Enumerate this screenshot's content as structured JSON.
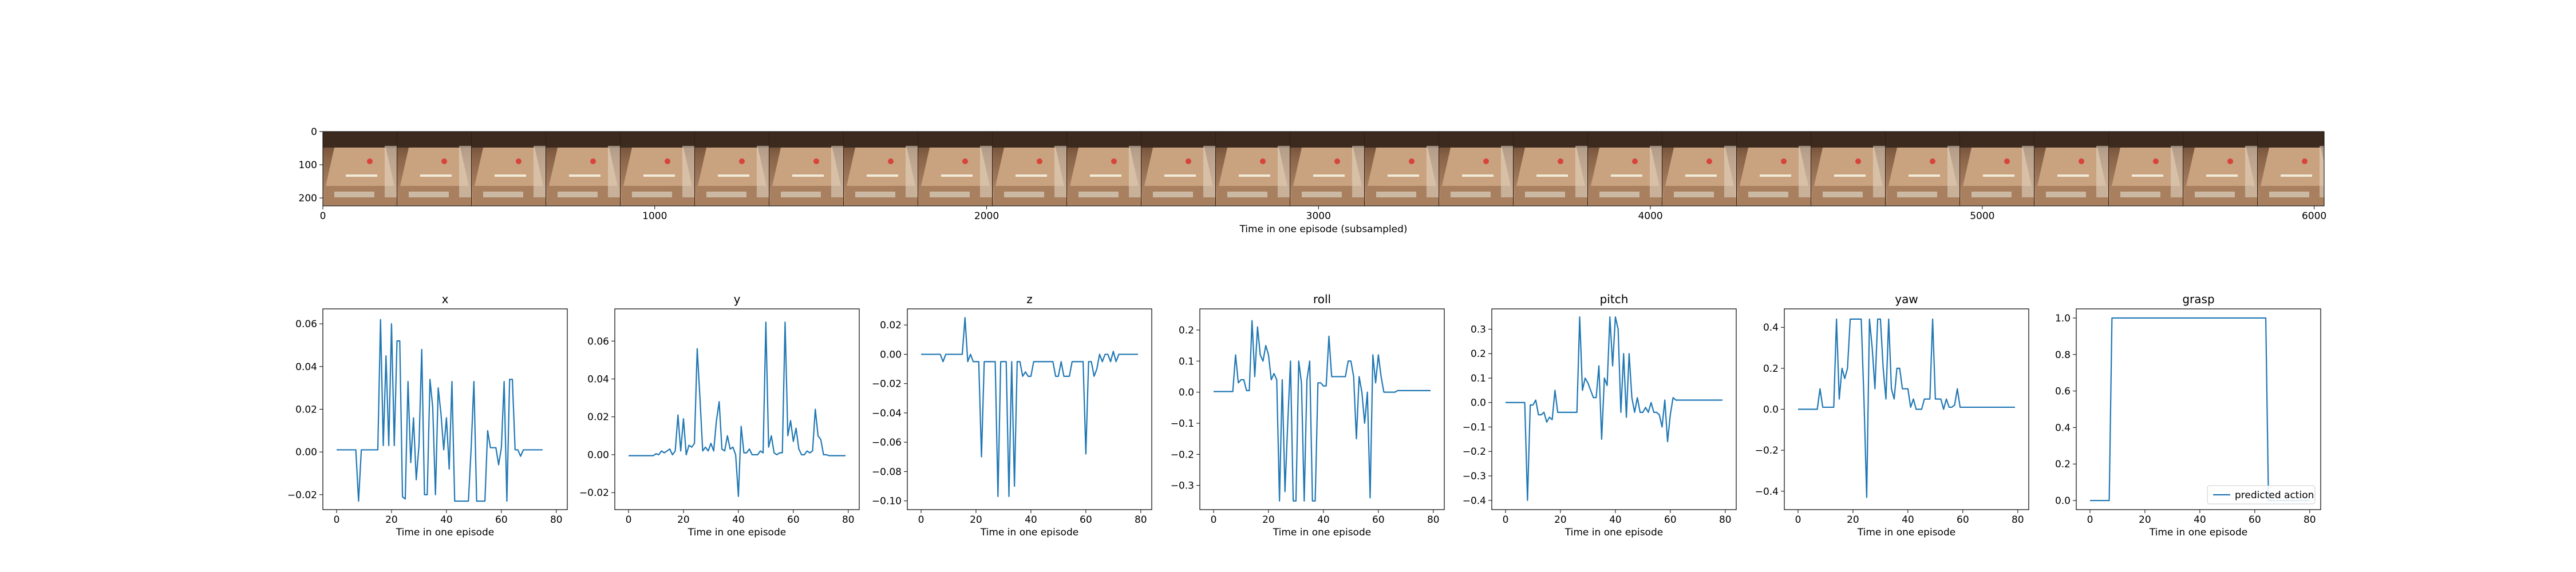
{
  "colors": {
    "line": "#1f77b4",
    "axis": "#000000",
    "background": "#ffffff"
  },
  "filmstrip": {
    "frame_count": 27,
    "x_label": "Time in one episode (subsampled)",
    "x_ticks": [
      "0",
      "1000",
      "2000",
      "3000",
      "4000",
      "5000",
      "6000"
    ],
    "y_ticks": [
      "0",
      "100",
      "200"
    ]
  },
  "chart_data": [
    {
      "type": "line",
      "title": "x",
      "xlabel": "Time in one episode",
      "ylabel": "",
      "xlim": [
        -5,
        84
      ],
      "ylim": [
        -0.027,
        0.067
      ],
      "x_ticks": [
        0,
        20,
        40,
        60,
        80
      ],
      "y_ticks": [
        -0.02,
        0.0,
        0.02,
        0.04,
        0.06
      ],
      "y_tick_labels": [
        "−0.02",
        "0.00",
        "0.02",
        "0.04",
        "0.06"
      ],
      "values": [
        0.001,
        0.001,
        0.001,
        0.001,
        0.001,
        0.001,
        0.001,
        0.001,
        -0.023,
        0.001,
        0.001,
        0.001,
        0.001,
        0.001,
        0.001,
        0.001,
        0.062,
        0.003,
        0.045,
        0.003,
        0.06,
        0.003,
        0.052,
        0.052,
        -0.021,
        -0.022,
        0.033,
        -0.005,
        0.016,
        -0.013,
        0.003,
        0.048,
        -0.02,
        -0.02,
        0.034,
        0.021,
        -0.02,
        0.03,
        0.018,
        0.001,
        0.016,
        -0.008,
        0.033,
        -0.023,
        -0.023,
        -0.023,
        -0.023,
        -0.023,
        -0.023,
        0.002,
        0.033,
        -0.023,
        -0.023,
        -0.023,
        -0.023,
        0.01,
        0.002,
        0.002,
        0.002,
        -0.006,
        0.002,
        0.033,
        -0.023,
        0.034,
        0.034,
        0.001,
        0.001,
        -0.002,
        0.001,
        0.001,
        0.001,
        0.001,
        0.001,
        0.001,
        0.001,
        0.001
      ]
    },
    {
      "type": "line",
      "title": "y",
      "xlabel": "Time in one episode",
      "ylabel": "",
      "xlim": [
        -5,
        84
      ],
      "ylim": [
        -0.029,
        0.077
      ],
      "x_ticks": [
        0,
        20,
        40,
        60,
        80
      ],
      "y_ticks": [
        -0.02,
        0.0,
        0.02,
        0.04,
        0.06
      ],
      "y_tick_labels": [
        "−0.02",
        "0.00",
        "0.02",
        "0.04",
        "0.06"
      ],
      "values": [
        -0.0005,
        -0.0005,
        -0.0005,
        -0.0005,
        -0.0005,
        -0.0005,
        -0.0005,
        -0.0005,
        -0.0005,
        -0.0005,
        0.0005,
        0.0,
        0.002,
        0.001,
        0.002,
        0.003,
        0.0,
        0.002,
        0.021,
        0.002,
        0.019,
        0.0,
        0.005,
        0.004,
        0.006,
        0.056,
        0.03,
        0.002,
        0.004,
        0.002,
        0.006,
        0.002,
        0.018,
        0.028,
        0.003,
        0.002,
        0.01,
        0.003,
        0.004,
        0.0,
        -0.022,
        0.015,
        0.001,
        0.001,
        0.003,
        0.0,
        0.0,
        0.0,
        0.002,
        0.001,
        0.07,
        0.004,
        0.01,
        0.001,
        0.0,
        0.001,
        0.001,
        0.07,
        0.01,
        0.018,
        0.007,
        0.014,
        0.003,
        0.0,
        0.0,
        0.002,
        0.001,
        0.002,
        0.024,
        0.01,
        0.008,
        0.0,
        0.0,
        -0.0005,
        -0.0005,
        -0.0005,
        -0.0005,
        -0.0005,
        -0.0005,
        -0.0005
      ]
    },
    {
      "type": "line",
      "title": "z",
      "xlabel": "Time in one episode",
      "ylabel": "",
      "xlim": [
        -5,
        84
      ],
      "ylim": [
        -0.106,
        0.031
      ],
      "x_ticks": [
        0,
        20,
        40,
        60,
        80
      ],
      "y_ticks": [
        0.02,
        0.0,
        -0.02,
        -0.04,
        -0.06,
        -0.08,
        -0.1
      ],
      "y_tick_labels": [
        "0.02",
        "0.00",
        "−0.02",
        "−0.04",
        "−0.06",
        "−0.08",
        "−0.10"
      ],
      "values": [
        0.0,
        0.0,
        0.0,
        0.0,
        0.0,
        0.0,
        0.0,
        0.0,
        -0.005,
        0.0,
        0.0,
        0.0,
        0.0,
        0.0,
        0.0,
        0.0,
        0.025,
        -0.005,
        0.0,
        -0.005,
        -0.005,
        -0.005,
        -0.07,
        -0.005,
        -0.005,
        -0.005,
        -0.005,
        -0.005,
        -0.097,
        -0.005,
        -0.005,
        -0.005,
        -0.097,
        -0.005,
        -0.09,
        -0.005,
        -0.005,
        -0.015,
        -0.012,
        -0.015,
        -0.015,
        -0.005,
        -0.005,
        -0.005,
        -0.005,
        -0.005,
        -0.005,
        -0.005,
        -0.005,
        -0.015,
        -0.015,
        -0.005,
        -0.015,
        -0.015,
        -0.015,
        -0.005,
        -0.005,
        -0.005,
        -0.005,
        -0.005,
        -0.068,
        -0.005,
        -0.005,
        -0.015,
        -0.01,
        0.0,
        -0.005,
        0.0,
        0.0,
        -0.005,
        0.002,
        -0.005,
        0.0,
        0.0,
        0.0,
        0.0,
        0.0,
        0.0,
        0.0,
        0.0
      ]
    },
    {
      "type": "line",
      "title": "roll",
      "xlabel": "Time in one episode",
      "ylabel": "",
      "xlim": [
        -5,
        84
      ],
      "ylim": [
        -0.378,
        0.268
      ],
      "x_ticks": [
        0,
        20,
        40,
        60,
        80
      ],
      "y_ticks": [
        0.2,
        0.1,
        0.0,
        -0.1,
        -0.2,
        -0.3
      ],
      "y_tick_labels": [
        "0.2",
        "0.1",
        "0.0",
        "−0.1",
        "−0.2",
        "−0.3"
      ],
      "values": [
        0.002,
        0.002,
        0.002,
        0.002,
        0.002,
        0.002,
        0.002,
        0.002,
        0.12,
        0.03,
        0.04,
        0.04,
        0.005,
        0.005,
        0.23,
        0.05,
        0.21,
        0.12,
        0.1,
        0.15,
        0.12,
        0.04,
        0.06,
        0.04,
        -0.35,
        0.04,
        -0.32,
        -0.1,
        0.1,
        -0.35,
        -0.35,
        0.1,
        0.03,
        -0.35,
        0.04,
        0.1,
        -0.35,
        -0.35,
        0.03,
        0.03,
        0.02,
        0.02,
        0.18,
        0.05,
        0.05,
        0.05,
        0.05,
        0.05,
        0.05,
        0.1,
        0.1,
        0.05,
        -0.15,
        0.05,
        0.0,
        -0.1,
        0.0,
        -0.34,
        0.12,
        0.03,
        0.12,
        0.05,
        0.0,
        0.0,
        0.0,
        0.0,
        0.0,
        0.005,
        0.005,
        0.005,
        0.005,
        0.005,
        0.005,
        0.005,
        0.005,
        0.005,
        0.005,
        0.005,
        0.005,
        0.005
      ]
    },
    {
      "type": "line",
      "title": "pitch",
      "xlabel": "Time in one episode",
      "ylabel": "",
      "xlim": [
        -5,
        84
      ],
      "ylim": [
        -0.438,
        0.383
      ],
      "x_ticks": [
        0,
        20,
        40,
        60,
        80
      ],
      "y_ticks": [
        0.3,
        0.2,
        0.1,
        0.0,
        -0.1,
        -0.2,
        -0.3,
        -0.4
      ],
      "y_tick_labels": [
        "0.3",
        "0.2",
        "0.1",
        "0.0",
        "−0.1",
        "−0.2",
        "−0.3",
        "−0.4"
      ],
      "values": [
        0.0,
        0.0,
        0.0,
        0.0,
        0.0,
        0.0,
        0.0,
        -0.0,
        -0.4,
        -0.01,
        -0.01,
        0.01,
        -0.05,
        -0.05,
        -0.04,
        -0.08,
        -0.06,
        -0.07,
        0.05,
        -0.04,
        -0.04,
        -0.04,
        -0.04,
        -0.04,
        -0.04,
        -0.04,
        -0.04,
        0.35,
        0.05,
        0.1,
        0.08,
        0.05,
        0.02,
        0.02,
        0.15,
        -0.15,
        0.1,
        0.07,
        0.35,
        0.15,
        0.35,
        0.3,
        -0.04,
        0.2,
        -0.06,
        0.2,
        0.02,
        -0.04,
        0.02,
        -0.04,
        -0.04,
        -0.02,
        -0.04,
        0.0,
        -0.04,
        -0.04,
        -0.05,
        -0.1,
        0.01,
        -0.16,
        -0.05,
        0.02,
        0.01,
        0.01,
        0.01,
        0.01,
        0.01,
        0.01,
        0.01,
        0.01,
        0.01,
        0.01,
        0.01,
        0.01,
        0.01,
        0.01,
        0.01,
        0.01,
        0.01,
        0.01
      ]
    },
    {
      "type": "line",
      "title": "yaw",
      "xlabel": "Time in one episode",
      "ylabel": "",
      "xlim": [
        -5,
        84
      ],
      "ylim": [
        -0.49,
        0.49
      ],
      "x_ticks": [
        0,
        20,
        40,
        60,
        80
      ],
      "y_ticks": [
        0.4,
        0.2,
        0.0,
        -0.2,
        -0.4
      ],
      "y_tick_labels": [
        "0.4",
        "0.2",
        "0.0",
        "−0.2",
        "−0.4"
      ],
      "values": [
        0.0,
        0.0,
        0.0,
        0.0,
        0.0,
        0.0,
        0.0,
        0.0,
        0.1,
        0.01,
        0.01,
        0.01,
        0.01,
        0.01,
        0.44,
        0.05,
        0.2,
        0.15,
        0.2,
        0.44,
        0.44,
        0.44,
        0.44,
        0.44,
        0.05,
        -0.43,
        0.44,
        0.3,
        0.1,
        0.44,
        0.44,
        0.2,
        0.05,
        0.44,
        0.1,
        0.05,
        0.2,
        0.2,
        0.1,
        0.1,
        0.1,
        0.01,
        0.05,
        0.0,
        0.0,
        0.0,
        0.05,
        0.05,
        0.05,
        0.44,
        0.05,
        0.05,
        0.05,
        0.0,
        0.05,
        0.01,
        0.01,
        0.02,
        0.1,
        0.01,
        0.01,
        0.01,
        0.01,
        0.01,
        0.01,
        0.01,
        0.01,
        0.01,
        0.01,
        0.01,
        0.01,
        0.01,
        0.01,
        0.01,
        0.01,
        0.01,
        0.01,
        0.01,
        0.01,
        0.01
      ]
    },
    {
      "type": "line",
      "title": "grasp",
      "xlabel": "Time in one episode",
      "ylabel": "",
      "xlim": [
        -5,
        84
      ],
      "ylim": [
        -0.05,
        1.05
      ],
      "x_ticks": [
        0,
        20,
        40,
        60,
        80
      ],
      "y_ticks": [
        1.0,
        0.8,
        0.6,
        0.4,
        0.2,
        0.0
      ],
      "y_tick_labels": [
        "1.0",
        "0.8",
        "0.6",
        "0.4",
        "0.2",
        "0.0"
      ],
      "legend": {
        "label": "predicted action",
        "position": "lower-right"
      },
      "points": [
        [
          0,
          0
        ],
        [
          7,
          0
        ],
        [
          8,
          1
        ],
        [
          9,
          1
        ],
        [
          10,
          1
        ],
        [
          64,
          1
        ],
        [
          65,
          0
        ],
        [
          80,
          0
        ]
      ]
    }
  ]
}
